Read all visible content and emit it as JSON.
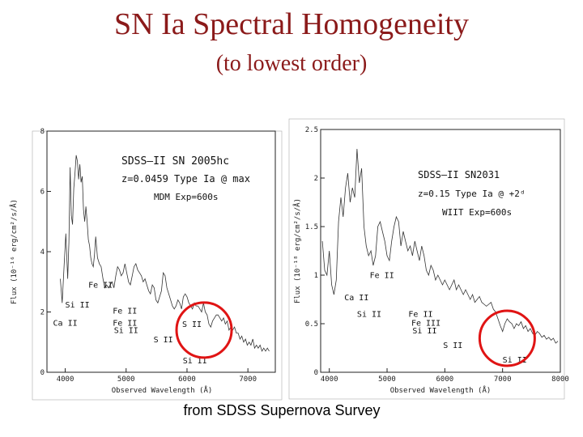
{
  "slide": {
    "title": "SN Ia Spectral Homogeneity",
    "subtitle": "(to lowest order)",
    "footer": "from SDSS Supernova Survey"
  },
  "chart_data": [
    {
      "type": "line",
      "xlabel": "Observed Wavelength (Å)",
      "ylabel": "Flux (10⁻¹⁶ erg/cm²/s/Å)",
      "xlim": [
        3700,
        7450
      ],
      "ylim": [
        0,
        8
      ],
      "xticks": [
        "4000",
        "5000",
        "6000",
        "7000"
      ],
      "xtick_values": [
        4000,
        5000,
        6000,
        7000
      ],
      "yticks": [
        "0",
        "2",
        "4",
        "6",
        "8"
      ],
      "ytick_values": [
        0,
        2,
        4,
        6,
        8
      ],
      "info": [
        "SDSS–II  SN 2005hc",
        "z=0.0459  Type Ia @ max",
        "MDM Exp=600s"
      ],
      "series": [
        {
          "x": [
            3920,
            3950,
            3980,
            4010,
            4040,
            4060,
            4080,
            4100,
            4120,
            4140,
            4160,
            4180,
            4200,
            4220,
            4240,
            4260,
            4280,
            4300,
            4320,
            4340,
            4360,
            4380,
            4400,
            4420,
            4440,
            4460,
            4480,
            4500,
            4530,
            4560,
            4590,
            4620,
            4650,
            4680,
            4710,
            4740,
            4770,
            4800,
            4830,
            4860,
            4890,
            4920,
            4950,
            4980,
            5010,
            5040,
            5070,
            5100,
            5130,
            5160,
            5190,
            5220,
            5250,
            5280,
            5310,
            5340,
            5370,
            5400,
            5430,
            5460,
            5490,
            5520,
            5550,
            5580,
            5610,
            5640,
            5670,
            5700,
            5730,
            5760,
            5790,
            5820,
            5850,
            5880,
            5910,
            5940,
            5970,
            6000,
            6030,
            6060,
            6090,
            6120,
            6150,
            6180,
            6210,
            6240,
            6270,
            6300,
            6330,
            6360,
            6390,
            6420,
            6450,
            6480,
            6510,
            6540,
            6570,
            6600,
            6630,
            6660,
            6690,
            6720,
            6750,
            6780,
            6810,
            6840,
            6870,
            6900,
            6930,
            6960,
            6990,
            7020,
            7050,
            7080,
            7110,
            7140,
            7170,
            7200,
            7230,
            7260,
            7290,
            7320,
            7350
          ],
          "y": [
            3.1,
            2.3,
            3.5,
            4.6,
            3.1,
            4.3,
            6.8,
            5.2,
            4.9,
            6.1,
            6.6,
            7.2,
            7.0,
            6.4,
            6.9,
            6.3,
            6.5,
            5.4,
            5.0,
            5.5,
            5.0,
            4.4,
            4.2,
            3.8,
            3.6,
            3.5,
            3.9,
            4.5,
            3.8,
            3.6,
            3.5,
            3.1,
            2.8,
            2.9,
            2.8,
            2.9,
            3.0,
            2.8,
            3.2,
            3.5,
            3.4,
            3.2,
            3.3,
            3.6,
            3.3,
            3.0,
            2.9,
            3.2,
            3.5,
            3.6,
            3.4,
            3.3,
            3.2,
            3.0,
            3.1,
            2.9,
            2.7,
            2.6,
            2.9,
            2.8,
            2.4,
            2.3,
            2.5,
            2.7,
            3.3,
            3.2,
            2.8,
            2.6,
            2.4,
            2.2,
            2.1,
            2.2,
            2.4,
            2.3,
            2.1,
            2.5,
            2.6,
            2.5,
            2.3,
            2.2,
            2.1,
            2.3,
            2.2,
            2.2,
            2.1,
            2.0,
            2.3,
            2.0,
            1.9,
            1.6,
            1.5,
            1.7,
            1.8,
            1.9,
            1.9,
            1.8,
            1.7,
            1.8,
            1.6,
            1.7,
            1.4,
            1.5,
            1.4,
            1.5,
            1.3,
            1.3,
            1.1,
            1.2,
            1.0,
            1.1,
            0.9,
            1.0,
            0.9,
            1.1,
            0.8,
            0.9,
            0.8,
            0.9,
            0.7,
            0.8,
            0.7,
            0.8,
            0.7
          ]
        }
      ],
      "annotations": [
        {
          "text": "Fe II",
          "x": 4380,
          "y": 2.8
        },
        {
          "text": "Si II",
          "x": 4000,
          "y": 2.15
        },
        {
          "text": "Ca II",
          "x": 3800,
          "y": 1.55
        },
        {
          "text": "Fe II",
          "x": 4780,
          "y": 1.95
        },
        {
          "text": "Fe II",
          "x": 4780,
          "y": 1.55
        },
        {
          "text": "Si II",
          "x": 4800,
          "y": 1.3
        },
        {
          "text": "S II",
          "x": 5450,
          "y": 1.0
        },
        {
          "text": "S II",
          "x": 5920,
          "y": 1.5
        },
        {
          "text": "Si II",
          "x": 5930,
          "y": 0.3
        }
      ],
      "highlight": {
        "shape": "circle",
        "color": "#e01414",
        "x": 6280,
        "y": 1.4
      }
    },
    {
      "type": "line",
      "xlabel": "Observed Wavelength (Å)",
      "ylabel": "Flux (10⁻¹⁸ erg/cm²/s/Å)",
      "xlim": [
        3850,
        8000
      ],
      "ylim": [
        0,
        2.5
      ],
      "xticks": [
        "4000",
        "5000",
        "6000",
        "7000",
        "8000"
      ],
      "xtick_values": [
        4000,
        5000,
        6000,
        7000,
        8000
      ],
      "yticks": [
        "0",
        "0.5",
        "1",
        "1.5",
        "2",
        "2.5"
      ],
      "ytick_values": [
        0,
        0.5,
        1,
        1.5,
        2,
        2.5
      ],
      "info": [
        "SDSS–II  SN2031",
        "z=0.15  Type Ia @ +2ᵈ",
        "WIIT Exp=600s"
      ],
      "series": [
        {
          "x": [
            3880,
            3920,
            3960,
            4000,
            4040,
            4080,
            4120,
            4160,
            4200,
            4240,
            4280,
            4320,
            4360,
            4400,
            4440,
            4480,
            4520,
            4560,
            4600,
            4640,
            4680,
            4720,
            4760,
            4800,
            4840,
            4880,
            4920,
            4960,
            5000,
            5040,
            5080,
            5120,
            5160,
            5200,
            5240,
            5280,
            5320,
            5360,
            5400,
            5440,
            5480,
            5520,
            5560,
            5600,
            5640,
            5680,
            5720,
            5760,
            5800,
            5840,
            5880,
            5920,
            5960,
            6000,
            6040,
            6080,
            6120,
            6160,
            6200,
            6240,
            6280,
            6320,
            6360,
            6400,
            6440,
            6480,
            6520,
            6560,
            6600,
            6640,
            6680,
            6720,
            6760,
            6800,
            6840,
            6880,
            6920,
            6960,
            7000,
            7040,
            7080,
            7120,
            7160,
            7200,
            7240,
            7280,
            7320,
            7360,
            7400,
            7440,
            7480,
            7520,
            7560,
            7600,
            7640,
            7680,
            7720,
            7760,
            7800,
            7840,
            7880,
            7920,
            7960
          ],
          "y": [
            1.35,
            1.05,
            1.0,
            1.25,
            0.9,
            0.8,
            0.95,
            1.55,
            1.8,
            1.6,
            1.9,
            2.05,
            1.75,
            1.9,
            1.8,
            2.3,
            1.95,
            2.1,
            1.5,
            1.3,
            1.2,
            1.25,
            1.1,
            1.2,
            1.5,
            1.55,
            1.45,
            1.35,
            1.2,
            1.15,
            1.35,
            1.5,
            1.6,
            1.55,
            1.3,
            1.45,
            1.35,
            1.25,
            1.3,
            1.2,
            1.35,
            1.25,
            1.15,
            1.3,
            1.2,
            1.05,
            1.0,
            1.1,
            1.05,
            0.95,
            1.0,
            0.95,
            0.9,
            0.95,
            0.9,
            0.85,
            0.9,
            0.95,
            0.85,
            0.9,
            0.85,
            0.8,
            0.85,
            0.8,
            0.75,
            0.8,
            0.72,
            0.75,
            0.78,
            0.72,
            0.7,
            0.68,
            0.7,
            0.72,
            0.65,
            0.62,
            0.55,
            0.48,
            0.42,
            0.5,
            0.55,
            0.52,
            0.5,
            0.45,
            0.5,
            0.48,
            0.52,
            0.45,
            0.48,
            0.42,
            0.45,
            0.4,
            0.38,
            0.42,
            0.4,
            0.36,
            0.38,
            0.34,
            0.36,
            0.33,
            0.35,
            0.3,
            0.32
          ]
        }
      ],
      "annotations": [
        {
          "text": "Fe II",
          "x": 4700,
          "y": 0.97
        },
        {
          "text": "Ca II",
          "x": 4260,
          "y": 0.74
        },
        {
          "text": "Si II",
          "x": 4480,
          "y": 0.57
        },
        {
          "text": "Fe II",
          "x": 5370,
          "y": 0.57
        },
        {
          "text": "Fe III",
          "x": 5420,
          "y": 0.48
        },
        {
          "text": "Si II",
          "x": 5440,
          "y": 0.4
        },
        {
          "text": "S II",
          "x": 5970,
          "y": 0.25
        },
        {
          "text": "Si II",
          "x": 7000,
          "y": 0.1
        }
      ],
      "highlight": {
        "shape": "circle",
        "color": "#e01414",
        "x": 7080,
        "y": 0.35
      }
    }
  ]
}
